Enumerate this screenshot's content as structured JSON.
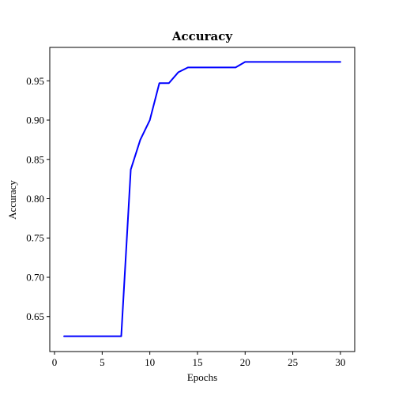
{
  "chart_data": {
    "type": "line",
    "title": "Accuracy",
    "xlabel": "Epochs",
    "ylabel": "Accuracy",
    "xlim": [
      -0.5,
      31.5
    ],
    "ylim": [
      0.6055,
      0.9925
    ],
    "xticks": [
      0,
      5,
      10,
      15,
      20,
      25,
      30
    ],
    "xtick_labels": [
      "0",
      "5",
      "10",
      "15",
      "20",
      "25",
      "30"
    ],
    "yticks": [
      0.65,
      0.7,
      0.75,
      0.8,
      0.85,
      0.9,
      0.95
    ],
    "ytick_labels": [
      "0.65",
      "0.70",
      "0.75",
      "0.80",
      "0.85",
      "0.90",
      "0.95"
    ],
    "grid": false,
    "legend": "none",
    "series": [
      {
        "color": "#0000ff",
        "x": [
          1,
          2,
          3,
          4,
          5,
          6,
          7,
          8,
          9,
          10,
          11,
          12,
          13,
          14,
          15,
          16,
          17,
          18,
          19,
          20,
          21,
          22,
          23,
          24,
          25,
          26,
          27,
          28,
          29,
          30
        ],
        "y": [
          0.625,
          0.625,
          0.625,
          0.625,
          0.625,
          0.625,
          0.625,
          0.837,
          0.875,
          0.9,
          0.947,
          0.947,
          0.961,
          0.967,
          0.967,
          0.967,
          0.967,
          0.967,
          0.967,
          0.974,
          0.974,
          0.974,
          0.974,
          0.974,
          0.974,
          0.974,
          0.974,
          0.974,
          0.974,
          0.974
        ]
      }
    ]
  }
}
